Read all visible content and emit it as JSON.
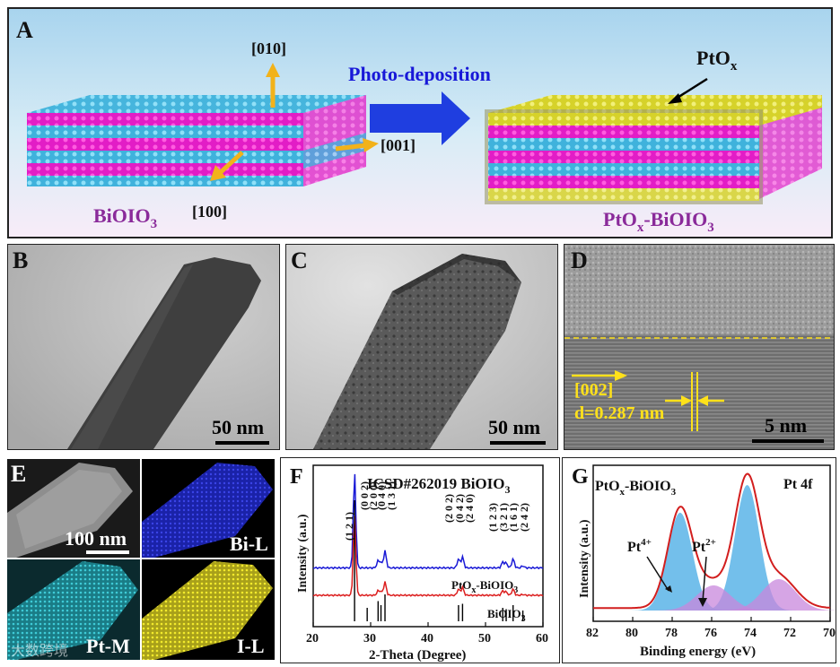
{
  "panel_a": {
    "letter": "A",
    "title": "Photo-deposition",
    "dir_010": "[010]",
    "dir_001": "[001]",
    "dir_100": "[100]",
    "left_base": "BiOIO",
    "left_sub": "3",
    "right_pre": "PtO",
    "right_x": "x",
    "right_post": "-BiOIO",
    "right_sub": "3",
    "ptox_base": "PtO",
    "ptox_sub": "x"
  },
  "panel_b": {
    "letter": "B",
    "scale": "50 nm"
  },
  "panel_c": {
    "letter": "C",
    "scale": "50 nm"
  },
  "panel_d": {
    "letter": "D",
    "plane": "[002]",
    "spacing": "d=0.287 nm",
    "scale": "5 nm"
  },
  "panel_e": {
    "letter": "E",
    "scale": "100 nm",
    "map_bi": "Bi-L",
    "map_pt": "Pt-M",
    "map_i": "I-L",
    "watermark": "大数跨境"
  },
  "panel_f": {
    "letter": "F",
    "ref_label": "ICSD#262019 BiOIO",
    "ref_sub": "3",
    "label_ptox_pre": "PtO",
    "label_ptox_x": "x",
    "label_ptox_post": "-BiOIO",
    "label_ptox_sub": "3",
    "label_bioio_pre": "BiOIO",
    "label_bioio_sub": "3",
    "peaks": [
      "(1 2 1)",
      "(0 0 2)",
      "(2 0 0)",
      "(0 4 0)",
      "(1 3 1)",
      "(2 0 2)",
      "(0 4 2)",
      "(2 4 0)",
      "(1 2 3)",
      "(3 2 1)",
      "(1 6 1)",
      "(2 4 2)"
    ]
  },
  "panel_g": {
    "letter": "G",
    "sample_pre": "PtO",
    "sample_x": "x",
    "sample_post": "-BiOIO",
    "sample_sub": "3",
    "orbital": "Pt 4f",
    "pt4_base": "Pt",
    "pt4_sup": "4+",
    "pt2_base": "Pt",
    "pt2_sup": "2+"
  },
  "chart_data": [
    {
      "type": "line",
      "panel": "F",
      "xlabel": "2-Theta (Degree)",
      "ylabel": "Intensity (a.u.)",
      "xlim": [
        20,
        60
      ],
      "xticks": [
        "20",
        "30",
        "40",
        "50",
        "60"
      ],
      "series": [
        {
          "name": "PtOx-BiOIO3",
          "color": "#1a1ad6",
          "x": [
            20,
            27.2,
            31.3,
            31.8,
            32.5,
            45.3,
            46.0,
            53.0,
            53.6,
            54.8,
            56.5,
            60
          ],
          "y": [
            0.05,
            1.0,
            0.12,
            0.1,
            0.22,
            0.14,
            0.16,
            0.11,
            0.1,
            0.14,
            0.07,
            0.05
          ]
        },
        {
          "name": "BiOIO3",
          "color": "#dc1e1e",
          "x": [
            20,
            27.2,
            31.3,
            31.8,
            32.5,
            45.3,
            46.0,
            53.0,
            53.6,
            54.8,
            56.5,
            60
          ],
          "y": [
            0.05,
            0.95,
            0.1,
            0.09,
            0.2,
            0.12,
            0.14,
            0.1,
            0.09,
            0.12,
            0.06,
            0.05
          ]
        },
        {
          "name": "ICSD#262019",
          "color": "#000000",
          "x": [
            27.2,
            29.4,
            31.3,
            31.8,
            32.5,
            45.3,
            46.0,
            53.0,
            53.6,
            54.8,
            56.5
          ],
          "y": [
            0.9,
            0.1,
            0.15,
            0.12,
            0.2,
            0.12,
            0.13,
            0.1,
            0.09,
            0.12,
            0.08
          ]
        }
      ]
    },
    {
      "type": "area",
      "panel": "G",
      "xlabel": "Binding energy (eV)",
      "ylabel": "Intensity (a.u.)",
      "xlim": [
        82,
        70
      ],
      "xticks": [
        "82",
        "80",
        "78",
        "76",
        "74",
        "72",
        "70"
      ],
      "series": [
        {
          "name": "Pt4+",
          "color": "#5ab4e8",
          "x": [
            77.6,
            74.2
          ],
          "y": [
            0.78,
            1.0
          ]
        },
        {
          "name": "Pt2+",
          "color": "#c887dc",
          "x": [
            75.9,
            72.6
          ],
          "y": [
            0.2,
            0.25
          ]
        },
        {
          "name": "envelope",
          "color": "#d21e1e",
          "x": [
            82,
            80,
            78.5,
            77.6,
            76.6,
            75.9,
            74.2,
            73.0,
            72.0,
            70.5
          ],
          "y": [
            0.02,
            0.1,
            0.6,
            0.8,
            0.45,
            0.4,
            1.02,
            0.45,
            0.22,
            0.04
          ]
        }
      ]
    }
  ]
}
